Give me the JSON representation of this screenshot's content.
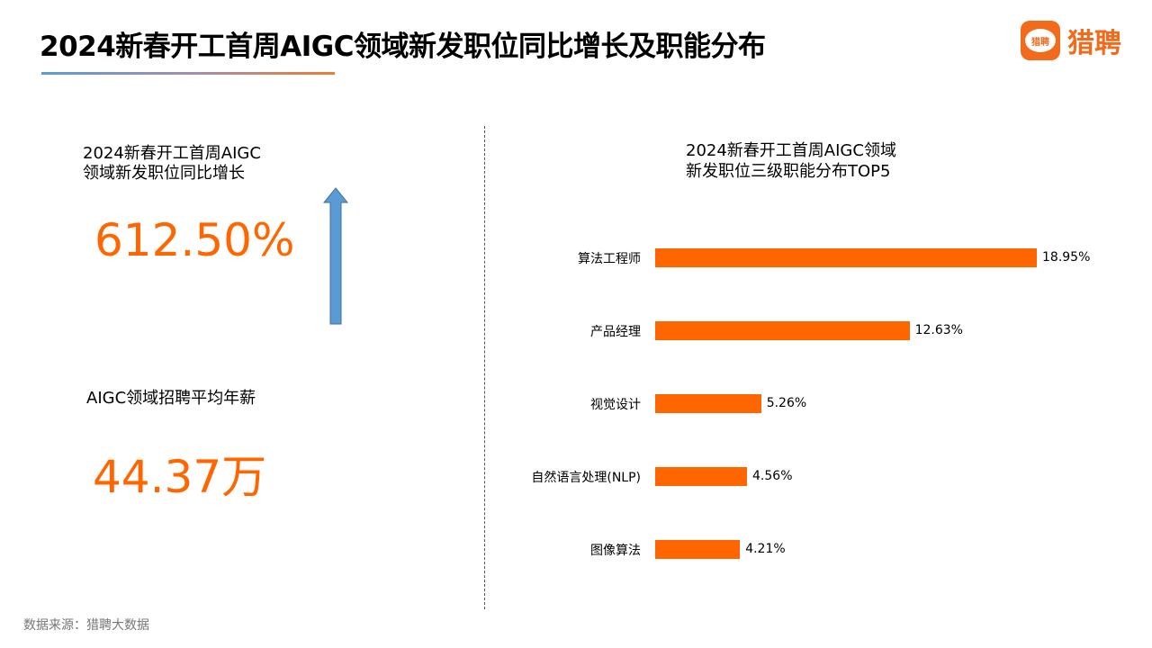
{
  "header": {
    "title": "2024新春开工首周AIGC领域新发职位同比增长及职能分布",
    "logo_text": "猎聘",
    "logo_icon_text": "猎聘"
  },
  "left": {
    "growth_label_line1": "2024新春开工首周AIGC",
    "growth_label_line2": "领域新发职位同比增长",
    "growth_value": "612.50%",
    "growth_icon": "up-arrow-icon",
    "salary_label": "AIGC领域招聘平均年薪",
    "salary_value": "44.37万"
  },
  "colors": {
    "accent": "#ff6600",
    "arrow": "#5b9bd5",
    "logo": "#f26a1b"
  },
  "chart_data": {
    "type": "bar",
    "orientation": "horizontal",
    "title_line1": "2024新春开工首周AIGC领域",
    "title_line2": "新发职位三级职能分布TOP5",
    "categories": [
      "算法工程师",
      "产品经理",
      "视觉设计",
      "自然语言处理(NLP)",
      "图像算法"
    ],
    "values": [
      18.95,
      12.63,
      5.26,
      4.56,
      4.21
    ],
    "labels": [
      "18.95%",
      "12.63%",
      "5.26%",
      "4.56%",
      "4.21%"
    ],
    "unit": "%",
    "color": "#ff6600",
    "grid": false
  },
  "footer": {
    "source": "数据来源：猎聘大数据"
  }
}
